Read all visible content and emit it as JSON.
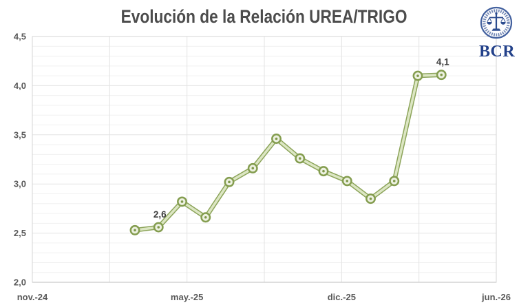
{
  "title": "Evolución de la Relación UREA/TRIGO",
  "logo": {
    "text": "BCR",
    "seal_color": "#43619f",
    "emblem_color": "#2c4c8f",
    "text_color": "#23418a"
  },
  "chart_data": {
    "type": "line",
    "title": "Evolución de la Relación UREA/TRIGO",
    "xlabel": "",
    "ylabel": "",
    "x_tick_labels": [
      "nov.-24",
      "may.-25",
      "dic.-25",
      "jun.-26"
    ],
    "y_tick_labels": [
      "4,5",
      "4,0",
      "3,5",
      "3,0",
      "2,5",
      "2,0"
    ],
    "ylim": [
      2.0,
      4.5
    ],
    "y_major_step": 0.5,
    "y_minor_step": 0.1,
    "grid": true,
    "legend": false,
    "series": [
      {
        "name": "Relación UREA/TRIGO",
        "values": [
          2.53,
          2.56,
          2.82,
          2.66,
          3.02,
          3.16,
          3.46,
          3.26,
          3.13,
          3.03,
          2.85,
          3.03,
          4.1,
          4.11
        ]
      }
    ],
    "point_labels": [
      {
        "index": 1,
        "text": "2,6"
      },
      {
        "index": 13,
        "text": "4,1"
      }
    ],
    "colors": {
      "line_edge": "#8ca45a",
      "line_fill": "#dce6c3",
      "marker_ring": "#849d4f",
      "marker_fill": "#edf1e1",
      "marker_dot": "#7e9749",
      "grid_major": "#e3e3e3",
      "grid_minor": "#f0f0f0",
      "plot_border": "#d4d4d4",
      "axis_text": "#595959",
      "title_text": "#4c4c4c"
    }
  }
}
